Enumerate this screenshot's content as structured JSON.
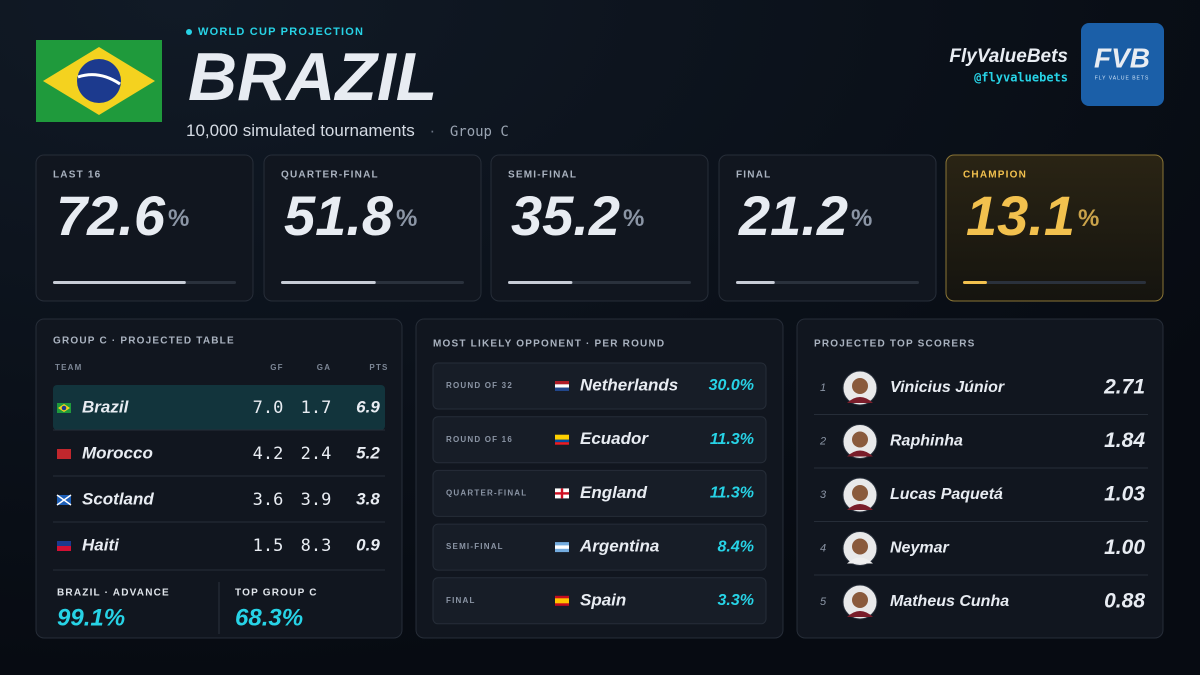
{
  "header": {
    "kicker": "WORLD CUP PROJECTION",
    "title": "BRAZIL",
    "subtitle": "10,000 simulated tournaments",
    "separator": "·",
    "group": "Group C",
    "brand": "FlyValueBets",
    "handle": "@flyvaluebets",
    "logo": "FVB",
    "logo_tagline": "FLY VALUE BETS"
  },
  "stages": [
    {
      "label": "LAST 16",
      "value": 72.6,
      "unit": "%"
    },
    {
      "label": "QUARTER-FINAL",
      "value": 51.8,
      "unit": "%"
    },
    {
      "label": "SEMI-FINAL",
      "value": 35.2,
      "unit": "%"
    },
    {
      "label": "FINAL",
      "value": 21.2,
      "unit": "%"
    },
    {
      "label": "CHAMPION",
      "value": 13.1,
      "unit": "%"
    }
  ],
  "group_table": {
    "title": "GROUP C · PROJECTED TABLE",
    "columns": [
      "TEAM",
      "GF",
      "GA",
      "PTS"
    ],
    "rows": [
      [
        "Brazil",
        "7.0",
        "1.7",
        "6.9"
      ],
      [
        "Morocco",
        "4.2",
        "2.4",
        "5.2"
      ],
      [
        "Scotland",
        "3.6",
        "3.9",
        "3.8"
      ],
      [
        "Haiti",
        "1.5",
        "8.3",
        "0.9"
      ]
    ],
    "summary": [
      {
        "label": "BRAZIL · ADVANCE",
        "value": "99.1%"
      },
      {
        "label": "TOP GROUP C",
        "value": "68.3%"
      }
    ]
  },
  "opponents": {
    "title": "MOST LIKELY OPPONENT · PER ROUND",
    "rows": [
      {
        "round": "ROUND OF 32",
        "team": "Netherlands",
        "pct": "30.0%"
      },
      {
        "round": "ROUND OF 16",
        "team": "Ecuador",
        "pct": "11.3%"
      },
      {
        "round": "QUARTER-FINAL",
        "team": "England",
        "pct": "11.3%"
      },
      {
        "round": "SEMI-FINAL",
        "team": "Argentina",
        "pct": "8.4%"
      },
      {
        "round": "FINAL",
        "team": "Spain",
        "pct": "3.3%"
      }
    ]
  },
  "scorers": {
    "title": "PROJECTED TOP SCORERS",
    "rows": [
      {
        "rank": 1,
        "name": "Vinicius Júnior",
        "value": "2.71"
      },
      {
        "rank": 2,
        "name": "Raphinha",
        "value": "1.84"
      },
      {
        "rank": 3,
        "name": "Lucas Paquetá",
        "value": "1.03"
      },
      {
        "rank": 4,
        "name": "Neymar",
        "value": "1.00"
      },
      {
        "rank": 5,
        "name": "Matheus Cunha",
        "value": "0.88"
      }
    ]
  }
}
